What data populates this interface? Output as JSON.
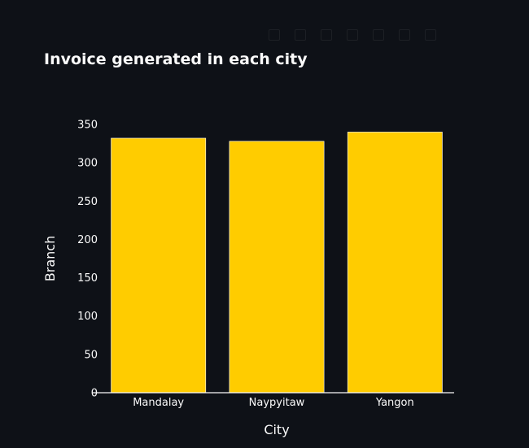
{
  "chart_data": {
    "type": "bar",
    "title": "Invoice generated in each city",
    "xlabel": "City",
    "ylabel": "Branch",
    "categories": [
      "Mandalay",
      "Naypyitaw",
      "Yangon"
    ],
    "values": [
      332,
      328,
      340
    ],
    "ylim": [
      0,
      350
    ],
    "yticks": [
      "0",
      "50",
      "100",
      "150",
      "200",
      "250",
      "300",
      "350"
    ],
    "bar_color": "#ffcc00",
    "background": "#0e1117",
    "grid": false,
    "legend": "none"
  }
}
